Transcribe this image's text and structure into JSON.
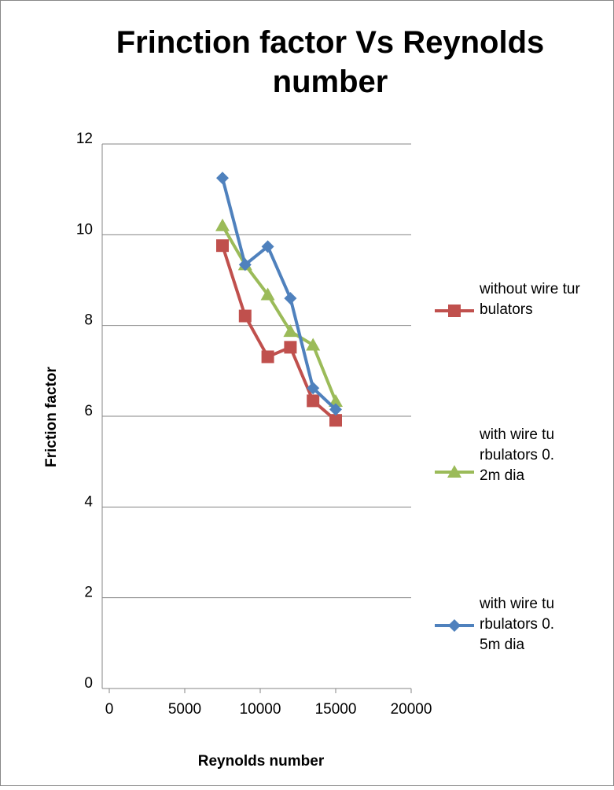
{
  "chart_data": {
    "type": "line",
    "title": "Frinction factor Vs Reynolds number",
    "x_label": "Reynolds number",
    "y_label": "Friction factor",
    "xlim": [
      0,
      20000
    ],
    "xticks": [
      0,
      5000,
      10000,
      15000,
      20000
    ],
    "ylim": [
      0,
      12
    ],
    "yticks": [
      0,
      2,
      4,
      6,
      8,
      10,
      12
    ],
    "grid": true,
    "legend": "right",
    "series": [
      {
        "name": "without wire turbulators",
        "color": "#c0504d",
        "marker": "square",
        "x": [
          7500,
          9000,
          10500,
          12000,
          13500,
          15000
        ],
        "values": [
          9.76,
          8.21,
          7.31,
          7.52,
          6.34,
          5.91
        ]
      },
      {
        "name": "with wire turbulators 0.2m dia",
        "color": "#9bbb59",
        "marker": "triangle",
        "x": [
          7500,
          9000,
          10500,
          12000,
          13500,
          15000
        ],
        "values": [
          10.2,
          9.34,
          8.68,
          7.87,
          7.57,
          6.33
        ]
      },
      {
        "name": "with wire turbulators 0.5m dia",
        "color": "#4f81bd",
        "marker": "diamond",
        "x": [
          7500,
          9000,
          10500,
          12000,
          13500,
          15000
        ],
        "values": [
          11.25,
          9.34,
          9.74,
          8.6,
          6.62,
          6.15
        ]
      }
    ]
  }
}
